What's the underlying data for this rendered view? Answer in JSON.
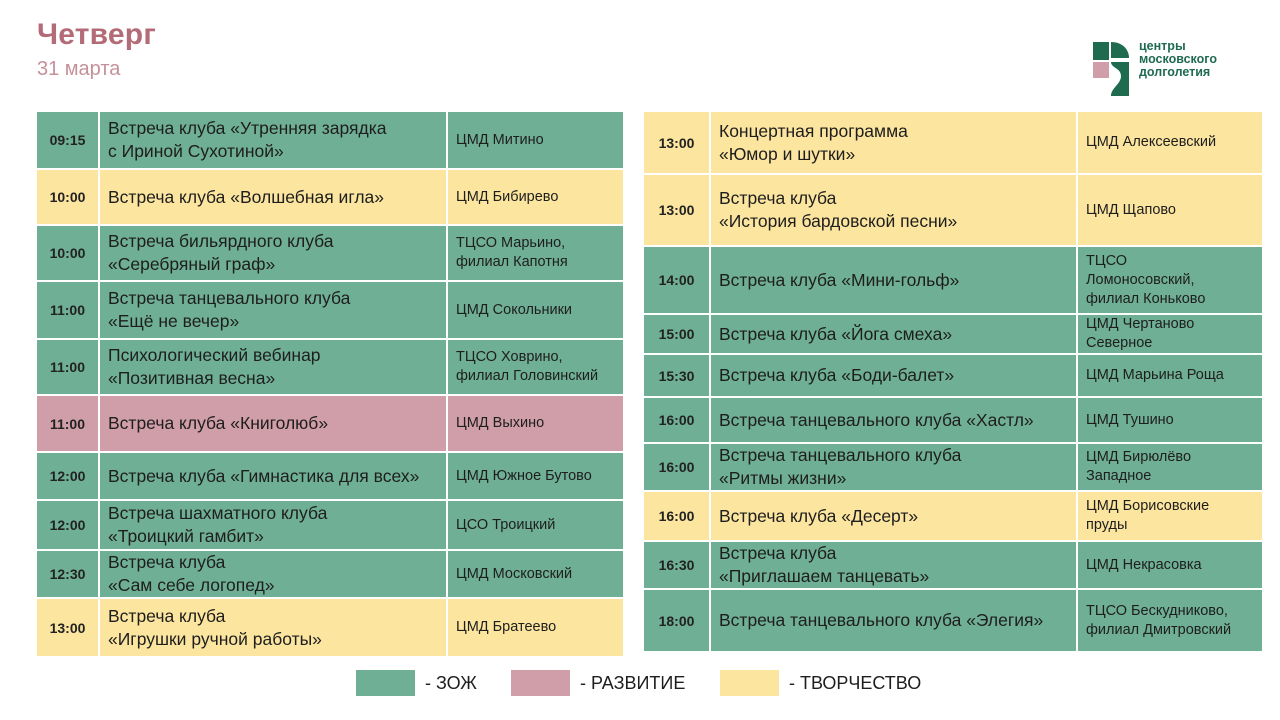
{
  "header": {
    "title": "Четверг",
    "date": "31 марта"
  },
  "logo": {
    "lines": [
      "центры",
      "московского",
      "долголетия"
    ],
    "colors": {
      "green": "#1f6b50",
      "pink": "#cf9ea8"
    }
  },
  "categories": {
    "zozh": {
      "label": "- ЗОЖ",
      "color": "#6faf96"
    },
    "razvitie": {
      "label": "- РАЗВИТИЕ",
      "color": "#cf9ea8"
    },
    "tvorchestvo": {
      "label": "- ТВОРЧЕСТВО",
      "color": "#fbe59f"
    }
  },
  "left_events": [
    {
      "time": "09:15",
      "event": "Встреча клуба «Утренняя зарядка\nс Ириной Сухотиной»",
      "place": "ЦМД Митино",
      "category": "zozh"
    },
    {
      "time": "10:00",
      "event": "Встреча клуба «Волшебная игла»",
      "place": "ЦМД Бибирево",
      "category": "tvorchestvo"
    },
    {
      "time": "10:00",
      "event": "Встреча бильярдного клуба\n«Серебряный граф»",
      "place": "ТЦСО Марьино,\nфилиал Капотня",
      "category": "zozh"
    },
    {
      "time": "11:00",
      "event": "Встреча танцевального клуба\n«Ещё не вечер»",
      "place": "ЦМД Сокольники",
      "category": "zozh"
    },
    {
      "time": "11:00",
      "event": "Психологический вебинар\n«Позитивная весна»",
      "place": "ТЦСО Ховрино,\nфилиал Головинский",
      "category": "zozh"
    },
    {
      "time": "11:00",
      "event": "Встреча клуба «Книголюб»",
      "place": "ЦМД Выхино",
      "category": "razvitie"
    },
    {
      "time": "12:00",
      "event": "Встреча клуба «Гимнастика для всех»",
      "place": "ЦМД Южное Бутово",
      "category": "zozh"
    },
    {
      "time": "12:00",
      "event": "Встреча шахматного клуба\n«Троицкий гамбит»",
      "place": "ЦСО Троицкий",
      "category": "zozh"
    },
    {
      "time": "12:30",
      "event": "Встреча клуба\n«Сам себе логопед»",
      "place": "ЦМД Московский",
      "category": "zozh"
    },
    {
      "time": "13:00",
      "event": "Встреча клуба\n«Игрушки ручной работы»",
      "place": "ЦМД Братеево",
      "category": "tvorchestvo"
    }
  ],
  "right_events": [
    {
      "time": "13:00",
      "event": "Концертная программа\n«Юмор и шутки»",
      "place": "ЦМД Алексеевский",
      "category": "tvorchestvo"
    },
    {
      "time": "13:00",
      "event": "Встреча клуба\n«История бардовской песни»",
      "place": "ЦМД Щапово",
      "category": "tvorchestvo"
    },
    {
      "time": "14:00",
      "event": "Встреча клуба «Мини-гольф»",
      "place": "ТЦСО\nЛомоносовский,\nфилиал Коньково",
      "category": "zozh"
    },
    {
      "time": "15:00",
      "event": "Встреча клуба «Йога смеха»",
      "place": "ЦМД Чертаново\nСеверное",
      "category": "zozh"
    },
    {
      "time": "15:30",
      "event": "Встреча клуба «Боди-балет»",
      "place": "ЦМД Марьина Роща",
      "category": "zozh"
    },
    {
      "time": "16:00",
      "event": "Встреча танцевального клуба «Хастл»",
      "place": "ЦМД Тушино",
      "category": "zozh"
    },
    {
      "time": "16:00",
      "event": "Встреча танцевального клуба\n«Ритмы жизни»",
      "place": "ЦМД Бирюлёво\nЗападное",
      "category": "zozh"
    },
    {
      "time": "16:00",
      "event": "Встреча клуба «Десерт»",
      "place": "ЦМД Борисовские\nпруды",
      "category": "tvorchestvo"
    },
    {
      "time": "16:30",
      "event": "Встреча клуба\n«Приглашаем танцевать»",
      "place": "ЦМД Некрасовка",
      "category": "zozh"
    },
    {
      "time": "18:00",
      "event": "Встреча танцевального клуба «Элегия»",
      "place": "ТЦСО Бескудниково,\nфилиал Дмитровский",
      "category": "zozh"
    }
  ]
}
